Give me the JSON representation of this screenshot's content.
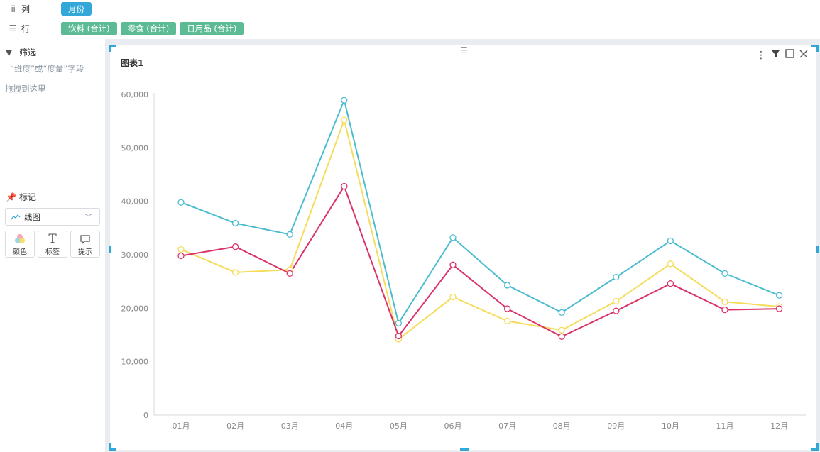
{
  "shelves": {
    "columns": {
      "label": "列",
      "pills": [
        "月份"
      ]
    },
    "rows": {
      "label": "行",
      "pills": [
        "饮料 (合计)",
        "零食 (合计)",
        "日用品 (合计)"
      ]
    }
  },
  "filter": {
    "title": "筛选",
    "hint_line1": "“维度”或“度量”字段",
    "hint_line2": "拖拽到这里"
  },
  "marks": {
    "title": "标记",
    "type_selected": "线图",
    "buttons": [
      {
        "label": "颜色",
        "icon": "palette-icon"
      },
      {
        "label": "标签",
        "icon": "text-icon"
      },
      {
        "label": "提示",
        "icon": "tooltip-icon"
      }
    ]
  },
  "chart_title": "图表1",
  "toolbar_icons": [
    "more-icon",
    "filter-icon",
    "maximize-icon",
    "close-icon"
  ],
  "colors": {
    "accent": "#33a7d7",
    "pill_green": "#5cbb95"
  },
  "chart_data": {
    "type": "line",
    "title": "图表1",
    "categories": [
      "01月",
      "02月",
      "03月",
      "04月",
      "05月",
      "06月",
      "07月",
      "08月",
      "09月",
      "10月",
      "11月",
      "12月"
    ],
    "ylim": [
      0,
      60000
    ],
    "yticks": [
      0,
      10000,
      20000,
      30000,
      40000,
      50000,
      60000
    ],
    "ytick_labels": [
      "0",
      "10,000",
      "20,000",
      "30,000",
      "40,000",
      "50,000",
      "60,000"
    ],
    "grid": false,
    "legend": "none",
    "series": [
      {
        "color": "#4bbcd0",
        "values": [
          39800,
          35900,
          33800,
          58900,
          17200,
          33200,
          24300,
          19200,
          25800,
          32600,
          26500,
          22400
        ]
      },
      {
        "color": "#f5dc5a",
        "values": [
          31000,
          26700,
          27200,
          55200,
          14200,
          22100,
          17600,
          15900,
          21300,
          28300,
          21200,
          20300
        ]
      },
      {
        "color": "#d9336a",
        "values": [
          29800,
          31500,
          26500,
          42800,
          14800,
          28100,
          19900,
          14700,
          19500,
          24600,
          19700,
          19900
        ]
      }
    ]
  }
}
